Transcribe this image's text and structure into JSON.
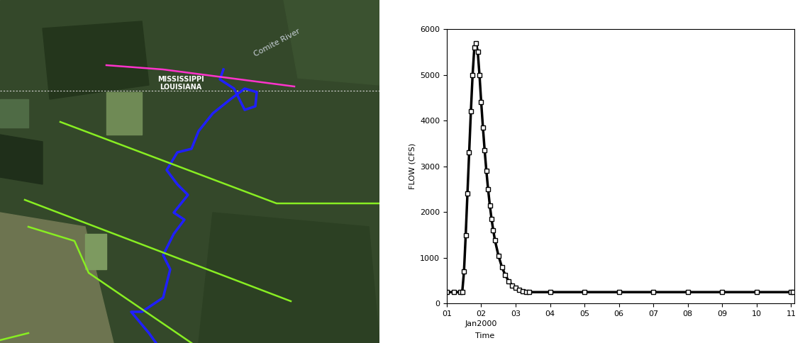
{
  "map": {
    "labels": [
      "Comite River",
      "MISSISSIPPI",
      "LOUISIANA"
    ]
  },
  "chart_data": {
    "type": "line",
    "ylabel": "FLOW (CFS)",
    "xlabel": "Time",
    "annotations": [
      "Jan2000"
    ],
    "x": [
      1.0,
      1.2,
      1.4,
      1.45,
      1.5,
      1.55,
      1.6,
      1.65,
      1.7,
      1.75,
      1.8,
      1.85,
      1.9,
      1.95,
      2.0,
      2.05,
      2.1,
      2.15,
      2.2,
      2.25,
      2.3,
      2.35,
      2.4,
      2.5,
      2.6,
      2.7,
      2.8,
      2.9,
      3.0,
      3.1,
      3.2,
      3.3,
      3.4,
      4.0,
      5.0,
      6.0,
      7.0,
      8.0,
      9.0,
      10.0,
      11.0,
      11.05
    ],
    "values": [
      250,
      250,
      250,
      260,
      700,
      1500,
      2400,
      3300,
      4200,
      5000,
      5600,
      5700,
      5500,
      5000,
      4400,
      3850,
      3350,
      2900,
      2500,
      2150,
      1850,
      1600,
      1380,
      1050,
      800,
      620,
      490,
      400,
      340,
      300,
      270,
      255,
      250,
      250,
      250,
      250,
      250,
      250,
      250,
      250,
      250,
      250
    ],
    "color": "#000000",
    "marker": "square",
    "xlim": [
      1.0,
      11.1
    ],
    "ylim": [
      0,
      6000
    ],
    "xticks": [
      {
        "value": 1,
        "label": "01"
      },
      {
        "value": 2,
        "label": "02"
      },
      {
        "value": 3,
        "label": "03"
      },
      {
        "value": 4,
        "label": "04"
      },
      {
        "value": 5,
        "label": "05"
      },
      {
        "value": 6,
        "label": "06"
      },
      {
        "value": 7,
        "label": "07"
      },
      {
        "value": 8,
        "label": "08"
      },
      {
        "value": 9,
        "label": "09"
      },
      {
        "value": 10,
        "label": "10"
      },
      {
        "value": 11,
        "label": "11"
      }
    ],
    "yticks": [
      0,
      1000,
      2000,
      3000,
      4000,
      5000,
      6000
    ]
  }
}
